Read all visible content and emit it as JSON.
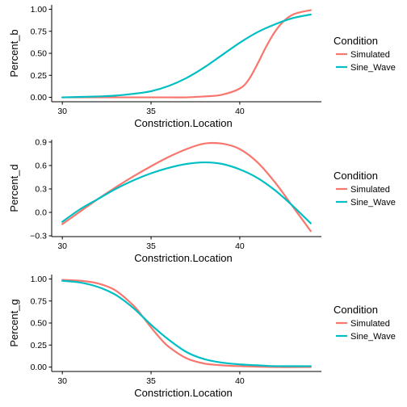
{
  "colors": {
    "Simulated": "#F8766D",
    "Sine_Wave": "#00BFC4"
  },
  "chart_data": [
    {
      "type": "line",
      "xlabel": "Constriction.Location",
      "ylabel": "Percent_b",
      "xlim": [
        29.4,
        44.6
      ],
      "ylim": [
        -0.05,
        1.05
      ],
      "xticks": [
        30,
        35,
        40
      ],
      "yticks": [
        0.0,
        0.25,
        0.5,
        0.75,
        1.0
      ],
      "ytick_labels": [
        "0.00",
        "0.25",
        "0.50",
        "0.75",
        "1.00"
      ],
      "grid": false,
      "legend": {
        "title": "Condition",
        "position": "right",
        "entries": [
          "Simulated",
          "Sine_Wave"
        ]
      },
      "series": [
        {
          "name": "Simulated",
          "x": [
            30,
            32,
            34,
            36,
            37,
            38,
            39,
            40,
            40.5,
            41,
            41.5,
            42,
            42.5,
            43,
            43.5,
            44
          ],
          "y": [
            0.0,
            0.0,
            0.0,
            0.0,
            0.0,
            0.01,
            0.03,
            0.1,
            0.2,
            0.38,
            0.58,
            0.75,
            0.87,
            0.94,
            0.97,
            0.99
          ]
        },
        {
          "name": "Sine_Wave",
          "x": [
            30,
            32,
            33,
            34,
            35,
            36,
            37,
            38,
            39,
            40,
            41,
            42,
            43,
            44
          ],
          "y": [
            0.0,
            0.01,
            0.02,
            0.04,
            0.07,
            0.13,
            0.22,
            0.34,
            0.48,
            0.62,
            0.74,
            0.83,
            0.9,
            0.94
          ]
        }
      ]
    },
    {
      "type": "line",
      "xlabel": "Constriction.Location",
      "ylabel": "Percent_d",
      "xlim": [
        29.4,
        44.6
      ],
      "ylim": [
        -0.31,
        0.93
      ],
      "xticks": [
        30,
        35,
        40
      ],
      "yticks": [
        -0.3,
        0.0,
        0.3,
        0.6,
        0.9
      ],
      "ytick_labels": [
        "−0.3",
        "0.0",
        "0.3",
        "0.6",
        "0.9"
      ],
      "grid": false,
      "legend": {
        "title": "Condition",
        "position": "right",
        "entries": [
          "Simulated",
          "Sine_Wave"
        ]
      },
      "series": [
        {
          "name": "Simulated",
          "x": [
            30,
            31,
            32,
            33,
            34,
            35,
            36,
            37,
            38,
            39,
            40,
            41,
            42,
            43,
            44
          ],
          "y": [
            -0.15,
            0.01,
            0.17,
            0.32,
            0.46,
            0.59,
            0.71,
            0.81,
            0.88,
            0.88,
            0.81,
            0.64,
            0.38,
            0.07,
            -0.24
          ]
        },
        {
          "name": "Sine_Wave",
          "x": [
            30,
            31,
            32,
            33,
            34,
            35,
            36,
            37,
            38,
            39,
            40,
            41,
            42,
            43,
            44
          ],
          "y": [
            -0.12,
            0.04,
            0.17,
            0.3,
            0.41,
            0.5,
            0.57,
            0.62,
            0.64,
            0.62,
            0.55,
            0.44,
            0.28,
            0.08,
            -0.14
          ]
        }
      ]
    },
    {
      "type": "line",
      "xlabel": "Constriction.Location",
      "ylabel": "Percent_g",
      "xlim": [
        29.4,
        44.6
      ],
      "ylim": [
        -0.05,
        1.05
      ],
      "xticks": [
        30,
        35,
        40
      ],
      "yticks": [
        0.0,
        0.25,
        0.5,
        0.75,
        1.0
      ],
      "ytick_labels": [
        "0.00",
        "0.25",
        "0.50",
        "0.75",
        "1.00"
      ],
      "grid": false,
      "legend": {
        "title": "Condition",
        "position": "right",
        "entries": [
          "Simulated",
          "Sine_Wave"
        ]
      },
      "series": [
        {
          "name": "Simulated",
          "x": [
            30,
            31,
            32,
            33,
            34,
            34.5,
            35,
            35.5,
            36,
            37,
            38,
            39,
            40,
            42,
            44
          ],
          "y": [
            0.99,
            0.98,
            0.95,
            0.87,
            0.7,
            0.58,
            0.45,
            0.33,
            0.23,
            0.1,
            0.04,
            0.02,
            0.01,
            0.0,
            0.0
          ]
        },
        {
          "name": "Sine_Wave",
          "x": [
            30,
            31,
            32,
            33,
            34,
            35,
            36,
            37,
            38,
            39,
            40,
            41,
            42,
            44
          ],
          "y": [
            0.98,
            0.96,
            0.91,
            0.82,
            0.67,
            0.48,
            0.31,
            0.17,
            0.09,
            0.05,
            0.03,
            0.02,
            0.01,
            0.01
          ]
        }
      ]
    }
  ]
}
